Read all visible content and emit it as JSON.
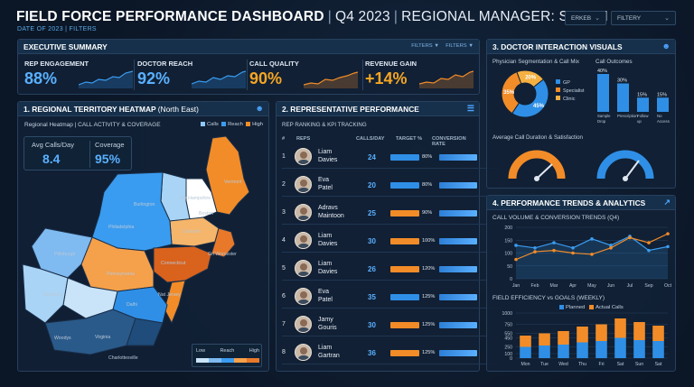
{
  "header": {
    "title": "FIELD FORCE PERFORMANCE DASHBOARD",
    "quarter": "Q4 2023",
    "manager": "REGIONAL MANAGER: SARAH CHEN",
    "subtitle": "DATE OF 2023  |  FILTERS",
    "select1": "ERKEB",
    "select2": "FILTERY"
  },
  "summary": {
    "title": "EXECUTIVE SUMMARY",
    "filter1": "FILTERS ▼",
    "filter2": "FILTERS ▼",
    "kpis": [
      {
        "label": "REP ENGAGEMENT",
        "value": "88%"
      },
      {
        "label": "DOCTOR REACH",
        "value": "92%"
      },
      {
        "label": "CALL QUALITY",
        "value": "90%"
      },
      {
        "label": "REVENUE GAIN",
        "value": "+14%"
      }
    ]
  },
  "heatmap": {
    "title": "1. REGIONAL TERRITORY HEATMAP",
    "title_suffix": "(North East)",
    "subtitle": "Regional Heatmap | CALL ACTIVITY & COVERAGE",
    "legend_top": [
      "Calls",
      "Reach",
      "High"
    ],
    "avg_label": "Avg Calls/Day",
    "avg_value": "8.4",
    "cov_label": "Coverage",
    "cov_value": "95%",
    "scale_labels": [
      "Low",
      "Reach",
      "High"
    ],
    "places": [
      "Vermont",
      "Ne Hampshire",
      "Burlington",
      "Philadelphia",
      "Boston",
      "Concord",
      "Grl Worcester",
      "Boston",
      "Connecticut",
      "Pittsburgh",
      "Pennsylvania",
      "Dalhi",
      "Nat Jersey",
      "Kentucky",
      "Virginia",
      "Charlottesville",
      "Woodys"
    ]
  },
  "reps": {
    "title": "2. REPRESENTATIVE PERFORMANCE",
    "subtitle": "REP RANKING & KPI TRACKING",
    "headers": {
      "num": "#",
      "reps": "REPS",
      "calls": "CALLS/DAY",
      "target": "TARGET %",
      "conv": "CONVERSION RATE"
    },
    "rows": [
      {
        "n": "1",
        "first": "Liam",
        "last": "Davies",
        "calls": "24",
        "target": "80%",
        "color": "#2f8fe6"
      },
      {
        "n": "2",
        "first": "Eva",
        "last": "Patel",
        "calls": "20",
        "target": "80%",
        "color": "#2f8fe6"
      },
      {
        "n": "3",
        "first": "Adravs",
        "last": "Maintoon",
        "calls": "25",
        "target": "90%",
        "color": "#f28c28"
      },
      {
        "n": "4",
        "first": "Liam",
        "last": "Davies",
        "calls": "30",
        "target": "100%",
        "color": "#f28c28"
      },
      {
        "n": "5",
        "first": "Liam",
        "last": "Davies",
        "calls": "26",
        "target": "120%",
        "color": "#f28c28"
      },
      {
        "n": "6",
        "first": "Eva",
        "last": "Patel",
        "calls": "35",
        "target": "125%",
        "color": "#2f8fe6"
      },
      {
        "n": "7",
        "first": "Jamy",
        "last": "Gouris",
        "calls": "30",
        "target": "125%",
        "color": "#f28c28"
      },
      {
        "n": "8",
        "first": "Liam",
        "last": "Gartran",
        "calls": "36",
        "target": "125%",
        "color": "#f28c28"
      }
    ]
  },
  "doctor": {
    "title": "3. DOCTOR INTERACTION VISUALS",
    "seg_title": "Physician Segmentation & Call Mix",
    "outcomes_title": "Call Outcomes",
    "donut": {
      "values": [
        45,
        35,
        20
      ],
      "labels": [
        "45%",
        "35%",
        "20%"
      ],
      "legend": [
        "GP",
        "Specialist",
        "Clinic"
      ],
      "colors": [
        "#2f8fe6",
        "#f28c28",
        "#f5b041"
      ]
    },
    "outcomes": {
      "values": [
        40,
        30,
        15,
        15
      ],
      "labels": [
        "40%",
        "30%",
        "15%",
        "15%"
      ],
      "categories": [
        "Sample Drop",
        "Prescription",
        "Follow up",
        "No Access"
      ]
    },
    "gauge_title": "Average Call Duration & Satisfaction"
  },
  "trends": {
    "title": "4. PERFORMANCE TRENDS & ANALYTICS",
    "line_title": "CALL VOLUME & CONVERSION TRENDS (Q4)",
    "bar_title": "FIELD EFFICIENCY vs GOALS (WEEKLY)",
    "legend": [
      "Planned",
      "Actual Calls"
    ]
  },
  "chart_data": [
    {
      "type": "line",
      "title": "CALL VOLUME & CONVERSION TRENDS (Q4)",
      "x": [
        "Jan",
        "Feb",
        "Mar",
        "Apr",
        "May",
        "Jun",
        "Jul",
        "Sep",
        "Oct"
      ],
      "ylim": [
        0,
        200
      ],
      "yticks": [
        0,
        50,
        100,
        150,
        200
      ],
      "series": [
        {
          "values": [
            130,
            120,
            140,
            120,
            155,
            130,
            165,
            110,
            125
          ]
        },
        {
          "values": [
            75,
            105,
            110,
            100,
            95,
            120,
            160,
            140,
            175
          ]
        }
      ]
    },
    {
      "type": "bar",
      "title": "FIELD EFFICIENCY vs GOALS (WEEKLY)",
      "categories": [
        "Mon",
        "Tue",
        "Wed",
        "Thu",
        "Fri",
        "Sat",
        "Sun",
        "Sat"
      ],
      "ylim": [
        0,
        1000
      ],
      "yticks": [
        0,
        100,
        250,
        450,
        550,
        750,
        1000
      ],
      "series": [
        {
          "name": "Planned",
          "values": [
            250,
            280,
            300,
            350,
            380,
            450,
            400,
            380
          ]
        },
        {
          "name": "Actual Calls",
          "values": [
            500,
            550,
            600,
            700,
            750,
            880,
            800,
            720
          ]
        }
      ]
    }
  ]
}
